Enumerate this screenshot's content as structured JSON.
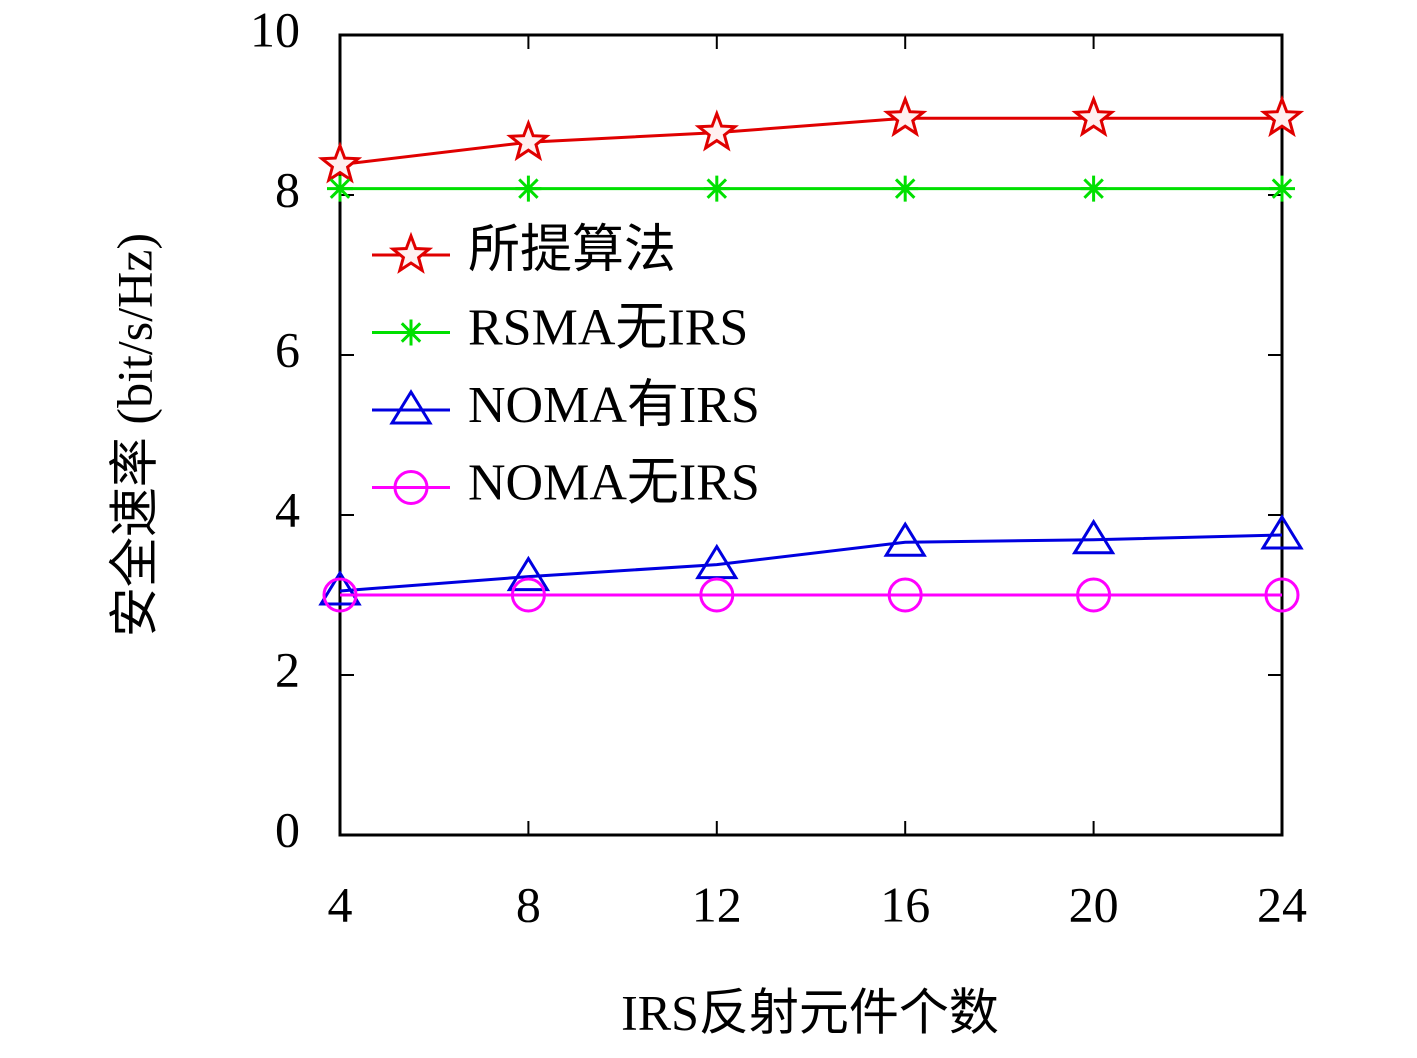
{
  "chart_data": {
    "type": "line",
    "x_label": "IRS反射元件个数",
    "y_label": "安全速率 (bit/s/Hz)",
    "x": [
      4,
      8,
      12,
      16,
      20,
      24
    ],
    "xlim": [
      4,
      24
    ],
    "xticks": [
      4,
      8,
      12,
      16,
      20,
      24
    ],
    "ylim": [
      0,
      10
    ],
    "yticks": [
      0,
      2,
      4,
      6,
      8,
      10
    ],
    "legend": "upper left",
    "series": [
      {
        "name": "所提算法",
        "color": "#e00000",
        "marker": "star",
        "values": [
          8.38,
          8.66,
          8.78,
          8.96,
          8.96,
          8.96
        ]
      },
      {
        "name": "RSMA无IRS",
        "color": "#00e000",
        "marker": "asterisk",
        "values": [
          8.08,
          8.08,
          8.08,
          8.08,
          8.08,
          8.08
        ]
      },
      {
        "name": "NOMA有IRS",
        "color": "#0000e0",
        "marker": "triangle",
        "values": [
          3.05,
          3.23,
          3.38,
          3.66,
          3.69,
          3.75
        ]
      },
      {
        "name": "NOMA无IRS",
        "color": "#ff00ff",
        "marker": "circle",
        "values": [
          3.0,
          3.0,
          3.0,
          3.0,
          3.0,
          3.0
        ]
      }
    ]
  }
}
